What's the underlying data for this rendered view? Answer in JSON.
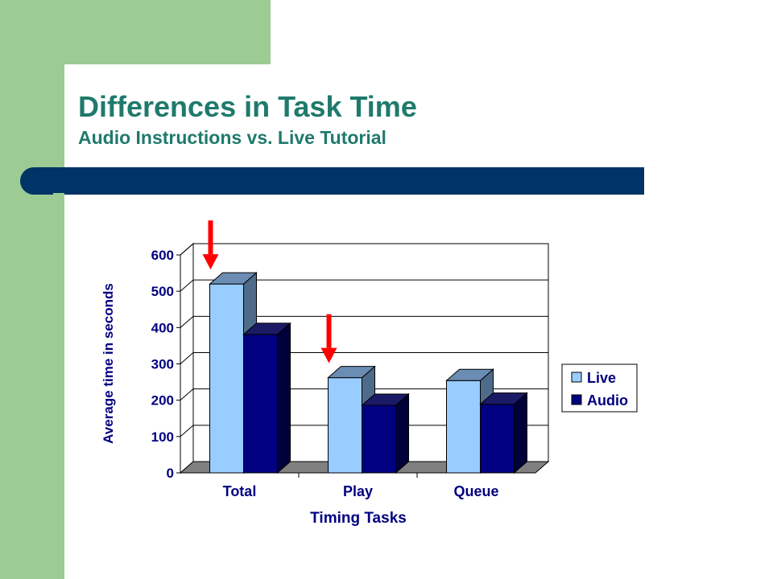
{
  "slide": {
    "title": "Differences in Task Time",
    "subtitle": "Audio Instructions vs. Live Tutorial"
  },
  "colors": {
    "band": "#9ccb94",
    "title_text": "#1f7a6c",
    "title_bar": "#003366",
    "live": "#99ccff",
    "audio": "#000080",
    "arrow": "#ff0000"
  },
  "chart_data": {
    "type": "bar",
    "title": "",
    "xlabel": "Timing Tasks",
    "ylabel": "Average time in seconds",
    "categories": [
      "Total",
      "Play",
      "Queue"
    ],
    "series": [
      {
        "name": "Live",
        "values": [
          520,
          262,
          254
        ]
      },
      {
        "name": "Audio",
        "values": [
          381,
          186,
          189
        ]
      }
    ],
    "ylim": [
      0,
      600
    ],
    "yticks": [
      0,
      100,
      200,
      300,
      400,
      500,
      600
    ],
    "grid": true,
    "legend": "right",
    "three_d": true,
    "annotations": [
      {
        "type": "arrow",
        "points_to": "Total"
      },
      {
        "type": "arrow",
        "points_to": "Play"
      }
    ]
  }
}
